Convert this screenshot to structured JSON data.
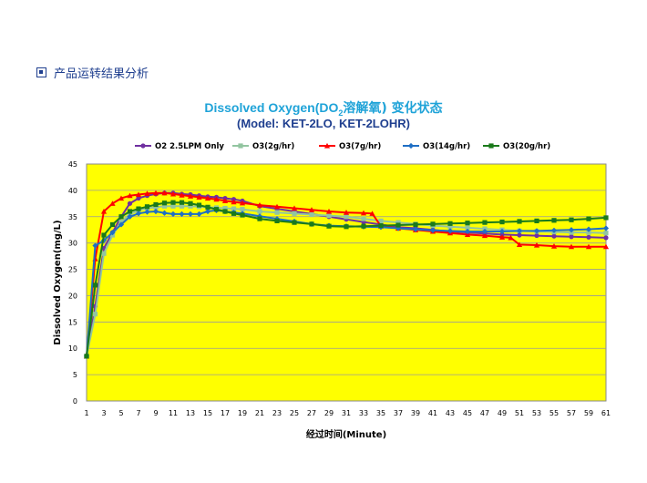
{
  "header": {
    "icon": "square-bullet-icon",
    "label": "产品运转结果分析"
  },
  "chart_data": {
    "type": "line",
    "title_main": "Dissolved Oxygen(DO",
    "title_sub": "2",
    "title_cn": "溶解氧) 变化状态",
    "subtitle": "(Model: KET-2LO, KET-2LOHR)",
    "xlabel": "经过时间(Minute)",
    "ylabel": "Dissolved Oxygen(mg/L)",
    "ylim": [
      0,
      45
    ],
    "xlim": [
      1,
      61
    ],
    "yticks": [
      0,
      5,
      10,
      15,
      20,
      25,
      30,
      35,
      40,
      45
    ],
    "xticks": [
      1,
      3,
      5,
      7,
      9,
      11,
      13,
      15,
      17,
      19,
      21,
      23,
      25,
      27,
      29,
      31,
      33,
      35,
      37,
      39,
      41,
      43,
      45,
      47,
      49,
      51,
      53,
      55,
      57,
      59,
      61
    ],
    "plot_bg": "#ffff00",
    "legend_position": "top",
    "series": [
      {
        "name": "O2 2.5LPM Only",
        "color": "#7030a0",
        "marker": "circle",
        "points": [
          [
            1,
            8.5
          ],
          [
            2,
            18
          ],
          [
            3,
            29
          ],
          [
            4,
            32
          ],
          [
            5,
            35
          ],
          [
            6,
            37.5
          ],
          [
            7,
            38.5
          ],
          [
            8,
            39
          ],
          [
            9,
            39.3
          ],
          [
            10,
            39.5
          ],
          [
            11,
            39.5
          ],
          [
            12,
            39.3
          ],
          [
            13,
            39.2
          ],
          [
            14,
            39
          ],
          [
            15,
            38.8
          ],
          [
            16,
            38.7
          ],
          [
            17,
            38.5
          ],
          [
            18,
            38.3
          ],
          [
            19,
            38
          ],
          [
            21,
            37
          ],
          [
            23,
            36.5
          ],
          [
            25,
            36
          ],
          [
            27,
            35.5
          ],
          [
            29,
            35
          ],
          [
            31,
            34.5
          ],
          [
            33,
            34
          ],
          [
            35,
            33.5
          ],
          [
            37,
            33
          ],
          [
            39,
            32.8
          ],
          [
            41,
            32.5
          ],
          [
            43,
            32.2
          ],
          [
            45,
            32
          ],
          [
            47,
            31.8
          ],
          [
            49,
            31.6
          ],
          [
            51,
            31.5
          ],
          [
            53,
            31.4
          ],
          [
            55,
            31.3
          ],
          [
            57,
            31.2
          ],
          [
            59,
            31.1
          ],
          [
            61,
            31
          ]
        ]
      },
      {
        "name": "O3(2g/hr)",
        "color": "#92c5a0",
        "marker": "square",
        "points": [
          [
            1,
            8.5
          ],
          [
            2,
            16.5
          ],
          [
            3,
            28
          ],
          [
            4,
            31.5
          ],
          [
            5,
            34
          ],
          [
            6,
            35.5
          ],
          [
            7,
            36.2
          ],
          [
            8,
            36.6
          ],
          [
            9,
            36.8
          ],
          [
            10,
            37
          ],
          [
            11,
            37
          ],
          [
            12,
            37
          ],
          [
            13,
            37
          ],
          [
            14,
            36.9
          ],
          [
            15,
            36.8
          ],
          [
            16,
            36.7
          ],
          [
            17,
            36.6
          ],
          [
            18,
            36.5
          ],
          [
            19,
            36.4
          ],
          [
            21,
            36
          ],
          [
            23,
            35.8
          ],
          [
            25,
            35.6
          ],
          [
            27,
            35.4
          ],
          [
            29,
            35.2
          ],
          [
            31,
            35
          ],
          [
            33,
            34.6
          ],
          [
            35,
            34.2
          ],
          [
            37,
            33.9
          ],
          [
            39,
            33.6
          ],
          [
            41,
            33.3
          ],
          [
            43,
            33.1
          ],
          [
            45,
            32.9
          ],
          [
            47,
            32.7
          ],
          [
            49,
            32.5
          ],
          [
            51,
            32.3
          ],
          [
            53,
            32.2
          ],
          [
            55,
            32.1
          ],
          [
            57,
            32
          ],
          [
            59,
            32
          ],
          [
            61,
            31.9
          ]
        ]
      },
      {
        "name": "O3(7g/hr)",
        "color": "#ff0000",
        "marker": "triangle",
        "points": [
          [
            1,
            8.5
          ],
          [
            2,
            27
          ],
          [
            3,
            36
          ],
          [
            4,
            37.5
          ],
          [
            5,
            38.5
          ],
          [
            6,
            39
          ],
          [
            7,
            39.2
          ],
          [
            8,
            39.4
          ],
          [
            9,
            39.5
          ],
          [
            10,
            39.5
          ],
          [
            11,
            39.3
          ],
          [
            12,
            39.1
          ],
          [
            13,
            38.9
          ],
          [
            14,
            38.7
          ],
          [
            15,
            38.5
          ],
          [
            16,
            38.3
          ],
          [
            17,
            38
          ],
          [
            18,
            37.8
          ],
          [
            19,
            37.6
          ],
          [
            21,
            37.2
          ],
          [
            23,
            36.9
          ],
          [
            25,
            36.6
          ],
          [
            27,
            36.3
          ],
          [
            29,
            36
          ],
          [
            31,
            35.8
          ],
          [
            33,
            35.7
          ],
          [
            34,
            35.6
          ],
          [
            35,
            33.2
          ],
          [
            37,
            32.8
          ],
          [
            39,
            32.5
          ],
          [
            41,
            32.2
          ],
          [
            43,
            31.9
          ],
          [
            45,
            31.6
          ],
          [
            47,
            31.4
          ],
          [
            49,
            31.1
          ],
          [
            50,
            31
          ],
          [
            51,
            29.7
          ],
          [
            53,
            29.6
          ],
          [
            55,
            29.4
          ],
          [
            57,
            29.3
          ],
          [
            59,
            29.3
          ],
          [
            61,
            29.3
          ]
        ]
      },
      {
        "name": "O3(14g/hr)",
        "color": "#1f6fc5",
        "marker": "diamond",
        "points": [
          [
            1,
            8.5
          ],
          [
            2,
            29.5
          ],
          [
            3,
            30.5
          ],
          [
            4,
            32
          ],
          [
            5,
            33.5
          ],
          [
            6,
            35
          ],
          [
            7,
            35.6
          ],
          [
            8,
            35.9
          ],
          [
            9,
            36
          ],
          [
            10,
            35.7
          ],
          [
            11,
            35.5
          ],
          [
            12,
            35.5
          ],
          [
            13,
            35.5
          ],
          [
            14,
            35.5
          ],
          [
            15,
            36
          ],
          [
            16,
            36.2
          ],
          [
            17,
            36
          ],
          [
            18,
            35.8
          ],
          [
            19,
            35.6
          ],
          [
            21,
            35.1
          ],
          [
            23,
            34.6
          ],
          [
            25,
            34.1
          ],
          [
            27,
            33.6
          ],
          [
            29,
            33.3
          ],
          [
            31,
            33.2
          ],
          [
            33,
            33.1
          ],
          [
            35,
            33
          ],
          [
            37,
            32.8
          ],
          [
            39,
            32.6
          ],
          [
            41,
            32.4
          ],
          [
            43,
            32.3
          ],
          [
            45,
            32.2
          ],
          [
            47,
            32.2
          ],
          [
            49,
            32.2
          ],
          [
            51,
            32.3
          ],
          [
            53,
            32.3
          ],
          [
            55,
            32.4
          ],
          [
            57,
            32.5
          ],
          [
            59,
            32.6
          ],
          [
            61,
            32.8
          ]
        ]
      },
      {
        "name": "O3(20g/hr)",
        "color": "#1a7a1a",
        "marker": "square",
        "points": [
          [
            1,
            8.5
          ],
          [
            2,
            22
          ],
          [
            3,
            31.5
          ],
          [
            4,
            33.5
          ],
          [
            5,
            35
          ],
          [
            6,
            36
          ],
          [
            7,
            36.5
          ],
          [
            8,
            36.9
          ],
          [
            9,
            37.3
          ],
          [
            10,
            37.6
          ],
          [
            11,
            37.7
          ],
          [
            12,
            37.7
          ],
          [
            13,
            37.5
          ],
          [
            14,
            37.2
          ],
          [
            15,
            36.8
          ],
          [
            16,
            36.4
          ],
          [
            17,
            36
          ],
          [
            18,
            35.6
          ],
          [
            19,
            35.3
          ],
          [
            21,
            34.6
          ],
          [
            23,
            34.2
          ],
          [
            25,
            33.9
          ],
          [
            27,
            33.6
          ],
          [
            29,
            33.2
          ],
          [
            31,
            33.1
          ],
          [
            33,
            33.2
          ],
          [
            35,
            33.3
          ],
          [
            37,
            33.4
          ],
          [
            39,
            33.5
          ],
          [
            41,
            33.6
          ],
          [
            43,
            33.7
          ],
          [
            45,
            33.8
          ],
          [
            47,
            33.9
          ],
          [
            49,
            34
          ],
          [
            51,
            34.1
          ],
          [
            53,
            34.2
          ],
          [
            55,
            34.3
          ],
          [
            57,
            34.4
          ],
          [
            59,
            34.6
          ],
          [
            61,
            34.8
          ]
        ]
      }
    ]
  }
}
